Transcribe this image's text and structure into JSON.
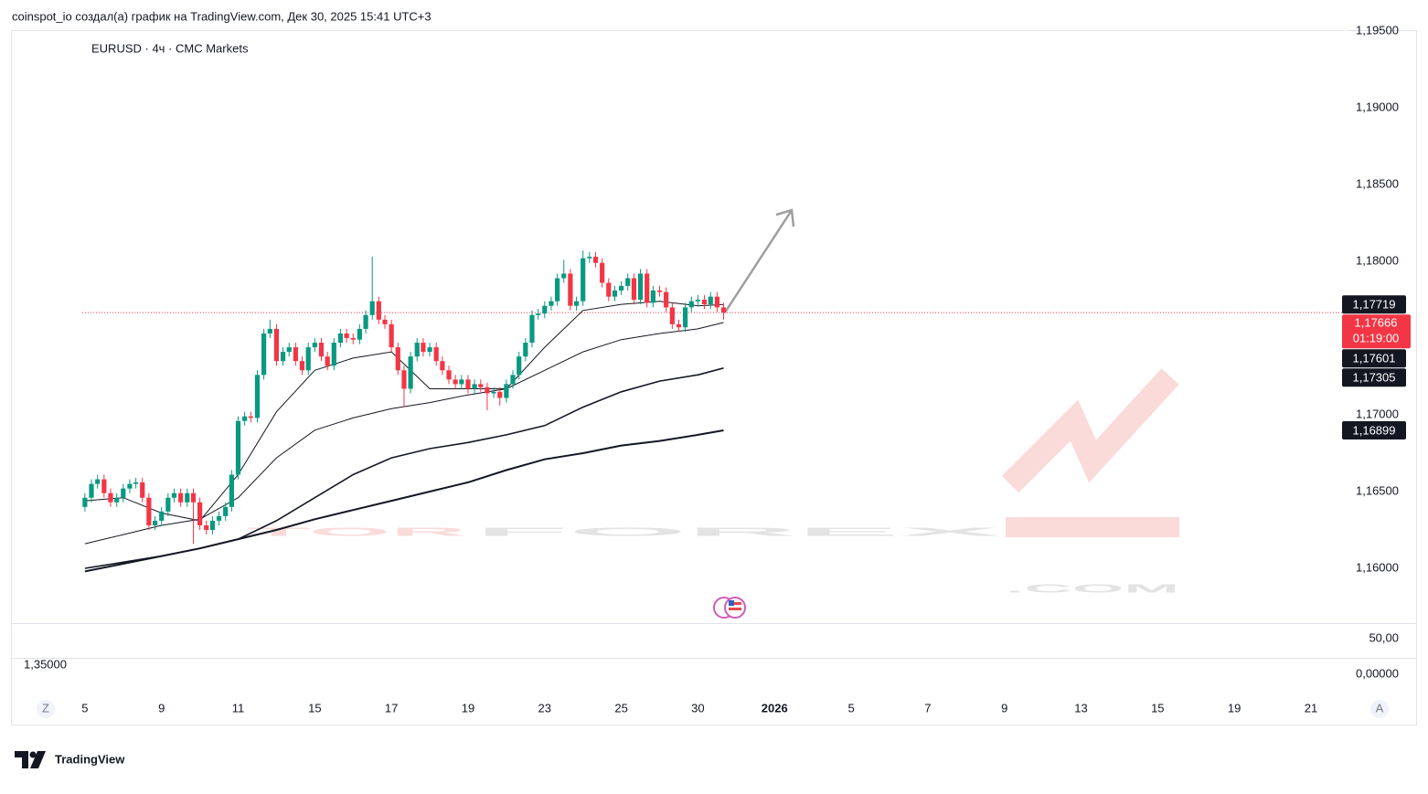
{
  "header": {
    "attribution": "coinspot_io создал(а) график на TradingView.com, Дек 30, 2025 15:41 UTC+3"
  },
  "chart_data": {
    "type": "candlestick",
    "title": "EURUSD · 4ч · CMC Markets",
    "x": [
      0,
      0.17,
      0.33,
      0.5,
      0.67,
      0.83,
      1,
      1.17,
      1.33,
      1.5,
      1.67,
      1.83,
      2,
      2.17,
      2.33,
      2.5,
      2.67,
      2.83,
      3,
      3.17,
      3.33,
      3.5,
      3.67,
      3.83,
      4,
      4.17,
      4.33,
      4.5,
      4.67,
      4.83,
      5,
      5.17,
      5.33,
      5.5,
      5.67,
      5.83,
      6,
      6.17,
      6.33,
      6.5,
      6.67,
      6.83,
      7,
      7.17,
      7.33,
      7.5,
      7.67,
      7.83,
      8,
      8.17,
      8.33,
      8.5,
      8.67,
      8.83,
      9,
      9.17,
      9.33,
      9.5,
      9.67,
      9.83,
      10,
      10.17,
      10.33,
      10.5,
      10.67,
      10.83,
      11,
      11.17,
      11.33,
      11.5,
      11.67,
      11.83,
      12,
      12.17,
      12.33,
      12.5,
      12.67,
      12.83,
      13,
      13.17,
      13.33,
      13.5,
      13.67,
      13.83,
      14,
      14.17,
      14.33,
      14.5,
      14.67,
      14.83,
      15,
      15.17,
      15.33,
      15.5,
      15.67,
      15.83,
      16,
      16.17,
      16.33,
      16.5,
      16.67
    ],
    "open": [
      1.164,
      1.1646,
      1.1655,
      1.1658,
      1.1649,
      1.1643,
      1.1646,
      1.1652,
      1.1655,
      1.1656,
      1.1646,
      1.1628,
      1.1631,
      1.1637,
      1.1646,
      1.1649,
      1.1643,
      1.1649,
      1.1643,
      1.1628,
      1.1625,
      1.1631,
      1.1634,
      1.164,
      1.1661,
      1.1696,
      1.1699,
      1.1698,
      1.1726,
      1.1753,
      1.1756,
      1.1735,
      1.1741,
      1.1744,
      1.1735,
      1.1729,
      1.1744,
      1.1747,
      1.1738,
      1.1732,
      1.1747,
      1.1753,
      1.175,
      1.1749,
      1.1756,
      1.1765,
      1.1774,
      1.1762,
      1.1759,
      1.1744,
      1.1729,
      1.1717,
      1.1738,
      1.1747,
      1.1741,
      1.1744,
      1.1735,
      1.1729,
      1.1723,
      1.172,
      1.1723,
      1.1717,
      1.172,
      1.1718,
      1.1714,
      1.1715,
      1.1711,
      1.172,
      1.1726,
      1.1738,
      1.1747,
      1.1765,
      1.1766,
      1.1771,
      1.1774,
      1.1789,
      1.1792,
      1.1771,
      1.1774,
      1.1802,
      1.1803,
      1.1799,
      1.1786,
      1.1777,
      1.1781,
      1.1784,
      1.1789,
      1.1775,
      1.1792,
      1.1773,
      1.1781,
      1.178,
      1.177,
      1.1759,
      1.1757,
      1.177,
      1.1774,
      1.1775,
      1.1772,
      1.1777,
      1.177
    ],
    "high": [
      1.1649,
      1.1658,
      1.1661,
      1.1661,
      1.1652,
      1.1649,
      1.1655,
      1.1658,
      1.1659,
      1.1659,
      1.1649,
      1.1634,
      1.164,
      1.1649,
      1.1652,
      1.1652,
      1.1652,
      1.1652,
      1.1646,
      1.1631,
      1.1634,
      1.1637,
      1.1643,
      1.1664,
      1.1699,
      1.1702,
      1.1702,
      1.1729,
      1.1756,
      1.1762,
      1.1759,
      1.1744,
      1.1747,
      1.1747,
      1.1738,
      1.1747,
      1.175,
      1.175,
      1.1741,
      1.175,
      1.1756,
      1.1756,
      1.1753,
      1.1759,
      1.1768,
      1.1803,
      1.1777,
      1.1765,
      1.1762,
      1.1747,
      1.1732,
      1.1741,
      1.175,
      1.175,
      1.1747,
      1.1747,
      1.1738,
      1.1732,
      1.1726,
      1.1726,
      1.1726,
      1.1723,
      1.1723,
      1.1721,
      1.1718,
      1.1718,
      1.1723,
      1.1729,
      1.1741,
      1.175,
      1.1768,
      1.1769,
      1.1774,
      1.1777,
      1.1792,
      1.1801,
      1.1795,
      1.1777,
      1.1807,
      1.1806,
      1.1806,
      1.1802,
      1.1789,
      1.1784,
      1.1787,
      1.1792,
      1.1792,
      1.1795,
      1.1795,
      1.1784,
      1.1784,
      1.1783,
      1.1773,
      1.1762,
      1.1773,
      1.1777,
      1.1778,
      1.1778,
      1.178,
      1.178,
      1.1773
    ],
    "low": [
      1.1637,
      1.1643,
      1.1652,
      1.1646,
      1.164,
      1.164,
      1.1643,
      1.1649,
      1.1652,
      1.1643,
      1.1625,
      1.1625,
      1.1628,
      1.1634,
      1.1643,
      1.164,
      1.164,
      1.1616,
      1.1625,
      1.1622,
      1.1622,
      1.1628,
      1.1631,
      1.1637,
      1.1658,
      1.1693,
      1.1695,
      1.1695,
      1.1723,
      1.175,
      1.1732,
      1.1732,
      1.1738,
      1.1732,
      1.1726,
      1.1726,
      1.1741,
      1.1735,
      1.1729,
      1.1729,
      1.1744,
      1.1747,
      1.1746,
      1.1746,
      1.1753,
      1.1762,
      1.1759,
      1.1756,
      1.1741,
      1.1726,
      1.1705,
      1.1714,
      1.1735,
      1.1738,
      1.1738,
      1.1732,
      1.1726,
      1.172,
      1.1717,
      1.1717,
      1.1714,
      1.1714,
      1.1715,
      1.1703,
      1.1711,
      1.1706,
      1.1708,
      1.1717,
      1.1723,
      1.1735,
      1.1744,
      1.1762,
      1.1763,
      1.1768,
      1.1771,
      1.1786,
      1.1768,
      1.1768,
      1.1771,
      1.1799,
      1.1796,
      1.1783,
      1.1774,
      1.1774,
      1.1778,
      1.1781,
      1.1772,
      1.1772,
      1.177,
      1.177,
      1.1777,
      1.1767,
      1.1756,
      1.1754,
      1.1754,
      1.1767,
      1.1771,
      1.1769,
      1.1769,
      1.1767,
      1.1762
    ],
    "close": [
      1.1646,
      1.1655,
      1.1658,
      1.1649,
      1.1643,
      1.1646,
      1.1652,
      1.1655,
      1.1656,
      1.1646,
      1.1628,
      1.1631,
      1.1637,
      1.1646,
      1.1649,
      1.1643,
      1.1649,
      1.1643,
      1.1628,
      1.1625,
      1.1631,
      1.1634,
      1.164,
      1.1661,
      1.1696,
      1.1699,
      1.1698,
      1.1726,
      1.1753,
      1.1756,
      1.1735,
      1.1741,
      1.1744,
      1.1735,
      1.1729,
      1.1744,
      1.1747,
      1.1738,
      1.1732,
      1.1747,
      1.1753,
      1.175,
      1.1749,
      1.1756,
      1.1765,
      1.1774,
      1.1762,
      1.1759,
      1.1744,
      1.1729,
      1.1717,
      1.1738,
      1.1747,
      1.1741,
      1.1744,
      1.1735,
      1.1729,
      1.1723,
      1.172,
      1.1723,
      1.1717,
      1.172,
      1.1718,
      1.1714,
      1.1715,
      1.1711,
      1.172,
      1.1726,
      1.1738,
      1.1747,
      1.1765,
      1.1766,
      1.1771,
      1.1774,
      1.1789,
      1.1792,
      1.1771,
      1.1774,
      1.1802,
      1.1803,
      1.1799,
      1.1786,
      1.1777,
      1.1781,
      1.1784,
      1.1789,
      1.1775,
      1.1792,
      1.1773,
      1.1781,
      1.178,
      1.177,
      1.1759,
      1.1757,
      1.177,
      1.1774,
      1.1775,
      1.1772,
      1.1777,
      1.177,
      1.17666
    ],
    "up_color": "#089981",
    "down_color": "#f23645",
    "xlim": [
      -1.93,
      32.86
    ],
    "xticks": [
      {
        "value": 0,
        "label": "5"
      },
      {
        "value": 2,
        "label": "9"
      },
      {
        "value": 4,
        "label": "11"
      },
      {
        "value": 6,
        "label": "15"
      },
      {
        "value": 8,
        "label": "17"
      },
      {
        "value": 10,
        "label": "19"
      },
      {
        "value": 12,
        "label": "23"
      },
      {
        "value": 14,
        "label": "25"
      },
      {
        "value": 16,
        "label": "30"
      },
      {
        "value": 18,
        "label": "2026"
      },
      {
        "value": 20,
        "label": "5"
      },
      {
        "value": 22,
        "label": "7"
      },
      {
        "value": 24,
        "label": "9"
      },
      {
        "value": 26,
        "label": "13"
      },
      {
        "value": 28,
        "label": "15"
      },
      {
        "value": 30,
        "label": "19"
      },
      {
        "value": 32,
        "label": "21"
      }
    ],
    "ylim": [
      1.15643,
      1.195
    ],
    "yticks": [
      {
        "value": 1.195,
        "label": "1,19500"
      },
      {
        "value": 1.19,
        "label": "1,19000"
      },
      {
        "value": 1.185,
        "label": "1,18500"
      },
      {
        "value": 1.18,
        "label": "1,18000"
      },
      {
        "value": 1.17,
        "label": "1,17000"
      },
      {
        "value": 1.165,
        "label": "1,16500"
      },
      {
        "value": 1.16,
        "label": "1,16000"
      }
    ],
    "price_label": {
      "value": 1.17666,
      "label": "1,17666",
      "countdown": "01:19:00",
      "color": "#f23645"
    },
    "series": [
      {
        "x": [
          0,
          1,
          2,
          3,
          4,
          5,
          6,
          7,
          8,
          9,
          10,
          11,
          12,
          13,
          14,
          15,
          16,
          16.67
        ],
        "values": [
          1.1644,
          1.1646,
          1.1636,
          1.1631,
          1.1661,
          1.1702,
          1.1729,
          1.1737,
          1.1741,
          1.1717,
          1.1717,
          1.1717,
          1.1744,
          1.1768,
          1.1772,
          1.1774,
          1.1771,
          1.17719
        ],
        "color": "#131722",
        "width": 1,
        "last_label": "1,17719"
      },
      {
        "x": [
          0,
          1,
          2,
          3,
          4,
          5,
          6,
          7,
          8,
          9,
          10,
          11,
          12,
          13,
          14,
          15,
          16,
          16.67
        ],
        "values": [
          1.1616,
          1.1622,
          1.1628,
          1.1632,
          1.1646,
          1.1672,
          1.169,
          1.1698,
          1.1704,
          1.1708,
          1.1713,
          1.1717,
          1.1729,
          1.1741,
          1.1749,
          1.1753,
          1.1756,
          1.17601
        ],
        "color": "#131722",
        "width": 1,
        "last_label": "1,17601"
      },
      {
        "x": [
          0,
          1,
          2,
          3,
          4,
          5,
          6,
          7,
          8,
          9,
          10,
          11,
          12,
          13,
          14,
          15,
          16,
          16.67
        ],
        "values": [
          1.16,
          1.1604,
          1.1608,
          1.1613,
          1.1619,
          1.1631,
          1.1646,
          1.1661,
          1.1672,
          1.1678,
          1.1682,
          1.1687,
          1.1693,
          1.1705,
          1.1715,
          1.1722,
          1.1726,
          1.17305
        ],
        "color": "#131722",
        "width": 1.6,
        "last_label": "1,17305"
      },
      {
        "x": [
          0,
          1,
          2,
          3,
          4,
          5,
          6,
          7,
          8,
          9,
          10,
          11,
          12,
          13,
          14,
          15,
          16,
          16.67
        ],
        "values": [
          1.1598,
          1.1603,
          1.1608,
          1.1613,
          1.1619,
          1.1625,
          1.1632,
          1.1638,
          1.1644,
          1.165,
          1.1656,
          1.1664,
          1.1671,
          1.1675,
          1.168,
          1.1683,
          1.1687,
          1.16899
        ],
        "color": "#131722",
        "width": 2,
        "last_label": "1,16899"
      }
    ],
    "lower_pane": {
      "labels": [
        "50,00",
        "0,00000"
      ],
      "left_label": "1,35000"
    },
    "watermark": [
      "TOR",
      "FOREX",
      ".COM"
    ],
    "buttons": [
      "Z",
      "A"
    ]
  },
  "footer": {
    "logo_text": "TradingView"
  }
}
